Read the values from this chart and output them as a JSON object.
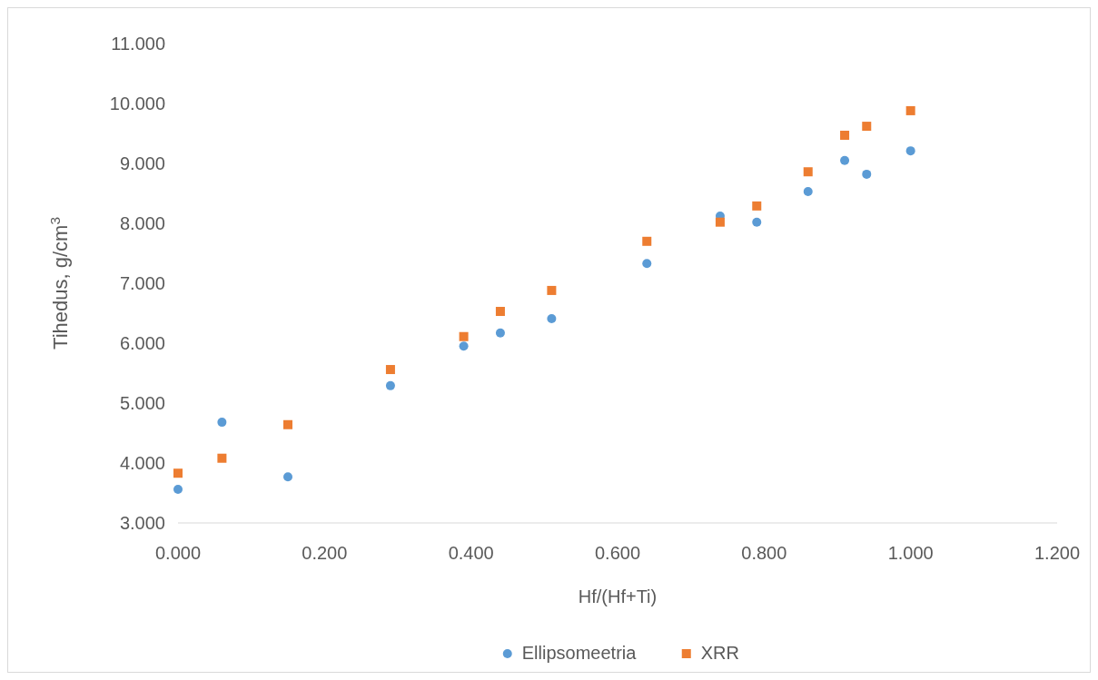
{
  "chart_data": {
    "type": "scatter",
    "xlabel": "Hf/(Hf+Ti)",
    "ylabel": "Tihedus, g/cm$^{3}$",
    "legend": "bottom",
    "xlim": [
      0,
      1.2
    ],
    "ylim": [
      3,
      11
    ],
    "xticks": [
      {
        "value": 0,
        "label": "0.000"
      },
      {
        "value": 0.2,
        "label": "0.200"
      },
      {
        "value": 0.4,
        "label": "0.400"
      },
      {
        "value": 0.6,
        "label": "0.600"
      },
      {
        "value": 0.8,
        "label": "0.800"
      },
      {
        "value": 1,
        "label": "1.000"
      },
      {
        "value": 1.2,
        "label": "1.200"
      }
    ],
    "yticks": [
      {
        "value": 3,
        "label": "3.000"
      },
      {
        "value": 4,
        "label": "4.000"
      },
      {
        "value": 5,
        "label": "5.000"
      },
      {
        "value": 6,
        "label": "6.000"
      },
      {
        "value": 7,
        "label": "7.000"
      },
      {
        "value": 8,
        "label": "8.000"
      },
      {
        "value": 9,
        "label": "9.000"
      },
      {
        "value": 10,
        "label": "10.000"
      },
      {
        "value": 11,
        "label": "11.000"
      }
    ],
    "series": [
      {
        "name": "Ellipsomeetria",
        "color": "#5b9bd5",
        "marker": "circle",
        "x": [
          0,
          0.06,
          0.15,
          0.29,
          0.39,
          0.44,
          0.51,
          0.64,
          0.74,
          0.79,
          0.86,
          0.91,
          0.94,
          1.0
        ],
        "values": [
          3.56,
          4.68,
          3.77,
          5.29,
          5.95,
          6.17,
          6.41,
          7.33,
          8.12,
          8.02,
          8.53,
          9.05,
          8.82,
          9.21
        ]
      },
      {
        "name": "XRR",
        "color": "#ed7d31",
        "marker": "square",
        "x": [
          0,
          0.06,
          0.15,
          0.29,
          0.39,
          0.44,
          0.51,
          0.64,
          0.74,
          0.79,
          0.86,
          0.91,
          0.94,
          1.0
        ],
        "values": [
          3.83,
          4.08,
          4.64,
          5.56,
          6.11,
          6.53,
          6.88,
          7.7,
          8.02,
          8.29,
          8.86,
          9.47,
          9.62,
          9.88
        ]
      }
    ]
  }
}
